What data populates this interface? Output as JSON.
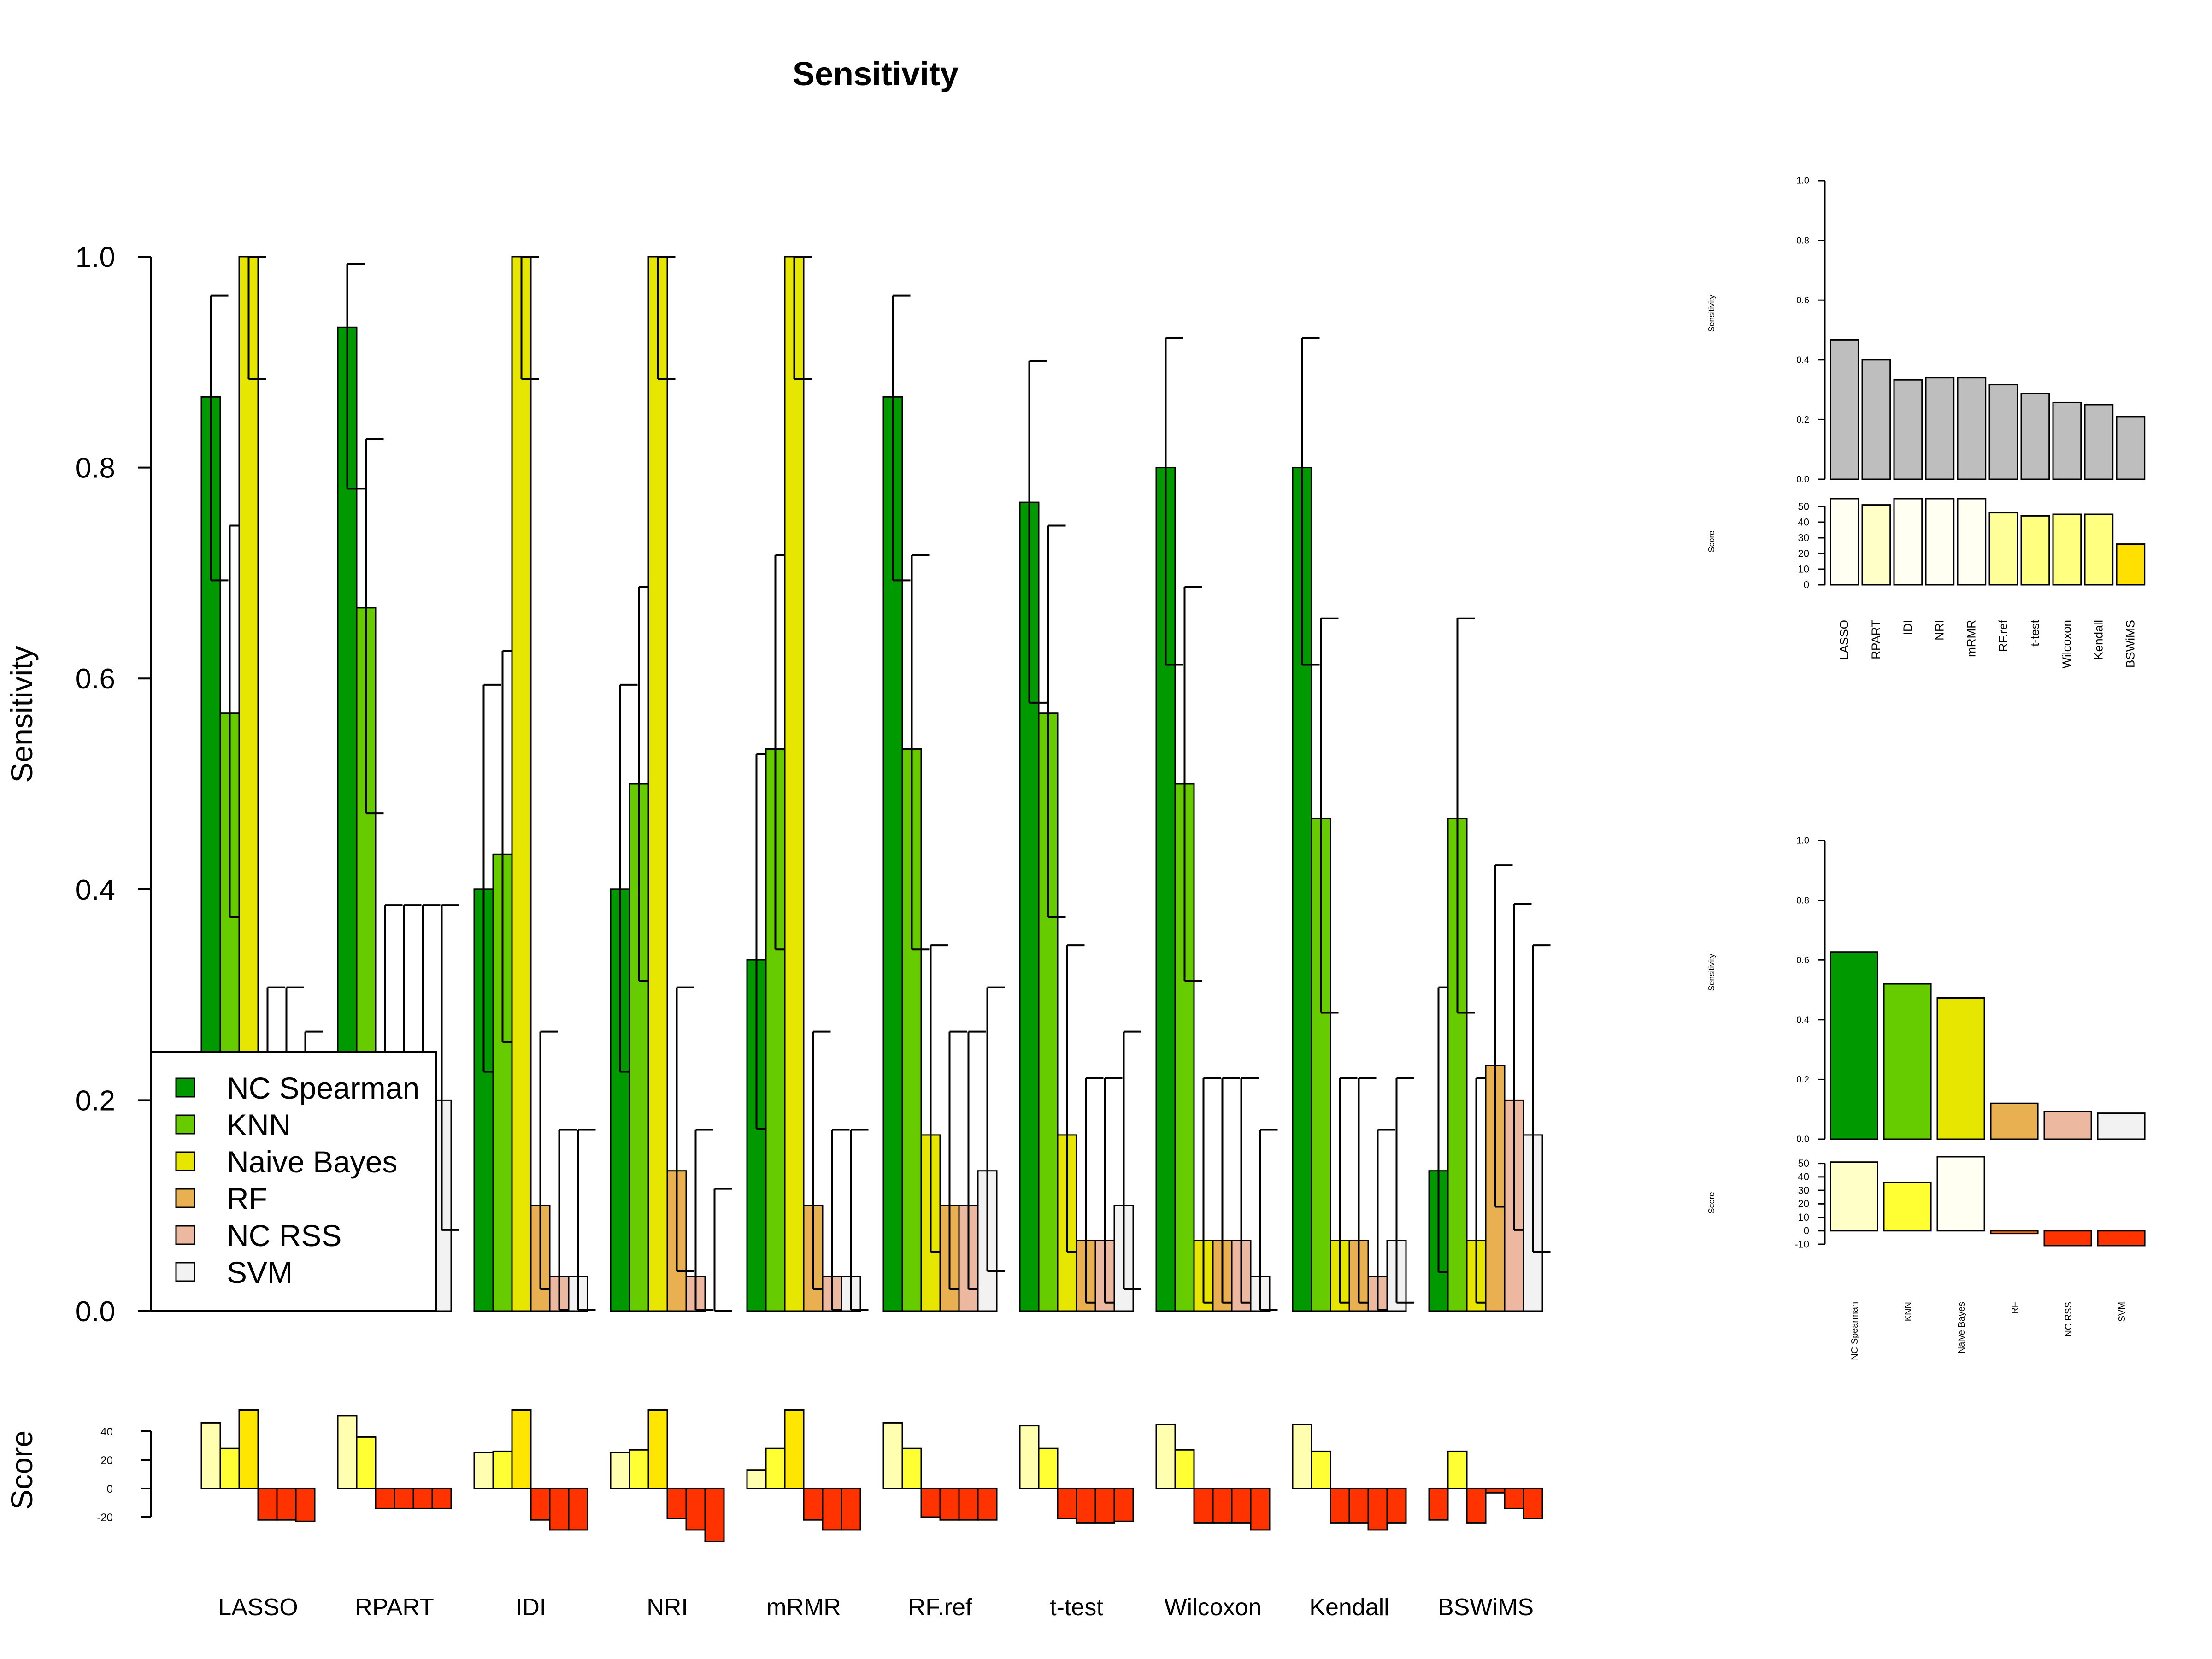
{
  "title": "Sensitivity",
  "colors": {
    "classifiers": [
      "#009900",
      "#66CC00",
      "#E6E600",
      "#E8B050",
      "#EDB8A0",
      "#F2F2F2"
    ],
    "score_pos": [
      "#FFFFAF",
      "#FFFF33",
      "#FFE600",
      "#FFD700",
      "#FFFFF0",
      "#F7F7F7"
    ],
    "score_neg": "#FF3300",
    "grey_bar": "#BEBEBE"
  },
  "chart_data": [
    {
      "type": "bar",
      "title": "Sensitivity",
      "ylabel": "Sensitivity",
      "ylim": [
        0,
        1
      ],
      "yticks": [
        "0.0",
        "0.2",
        "0.4",
        "0.6",
        "0.8",
        "1.0"
      ],
      "categories": [
        "LASSO",
        "RPART",
        "IDI",
        "NRI",
        "mRMR",
        "RF.ref",
        "t-test",
        "Wilcoxon",
        "Kendall",
        "BSWiMS"
      ],
      "legend": [
        "NC Spearman",
        "KNN",
        "Naive Bayes",
        "RF",
        "NC RSS",
        "SVM"
      ],
      "legend_position": "bottom-left",
      "series": [
        {
          "name": "NC Spearman",
          "values": [
            0.867,
            0.933,
            0.4,
            0.4,
            0.333,
            0.867,
            0.767,
            0.8,
            0.8,
            0.133
          ],
          "lower": [
            0.693,
            0.78,
            0.227,
            0.227,
            0.173,
            0.693,
            0.577,
            0.613,
            0.613,
            0.037
          ],
          "upper": [
            0.963,
            0.993,
            0.594,
            0.594,
            0.528,
            0.963,
            0.901,
            0.923,
            0.923,
            0.307
          ]
        },
        {
          "name": "KNN",
          "values": [
            0.567,
            0.667,
            0.433,
            0.5,
            0.533,
            0.533,
            0.567,
            0.5,
            0.467,
            0.467
          ],
          "lower": [
            0.374,
            0.472,
            0.255,
            0.313,
            0.343,
            0.343,
            0.374,
            0.313,
            0.283,
            0.283
          ],
          "upper": [
            0.745,
            0.827,
            0.626,
            0.687,
            0.717,
            0.717,
            0.745,
            0.687,
            0.657,
            0.657
          ]
        },
        {
          "name": "Naive Bayes",
          "values": [
            1.0,
            0.0,
            1.0,
            1.0,
            1.0,
            0.167,
            0.167,
            0.067,
            0.067,
            0.067
          ],
          "lower": [
            0.884,
            0.0,
            0.884,
            0.884,
            0.884,
            0.056,
            0.056,
            0.008,
            0.008,
            0.008
          ],
          "upper": [
            1.0,
            0.385,
            1.0,
            1.0,
            1.0,
            0.347,
            0.347,
            0.221,
            0.221,
            0.221
          ]
        },
        {
          "name": "RF",
          "values": [
            0.0,
            0.0,
            0.1,
            0.133,
            0.1,
            0.1,
            0.067,
            0.067,
            0.067,
            0.233
          ],
          "lower": [
            0.0,
            0.0,
            0.021,
            0.038,
            0.021,
            0.021,
            0.008,
            0.008,
            0.008,
            0.099
          ],
          "upper": [
            0.307,
            0.385,
            0.265,
            0.307,
            0.265,
            0.265,
            0.221,
            0.221,
            0.221,
            0.423
          ]
        },
        {
          "name": "NC RSS",
          "values": [
            0.0,
            0.0,
            0.033,
            0.033,
            0.033,
            0.1,
            0.067,
            0.067,
            0.033,
            0.2
          ],
          "lower": [
            0.0,
            0.0,
            0.001,
            0.001,
            0.001,
            0.021,
            0.008,
            0.008,
            0.001,
            0.077
          ],
          "upper": [
            0.307,
            0.385,
            0.172,
            0.172,
            0.172,
            0.265,
            0.221,
            0.221,
            0.172,
            0.386
          ]
        },
        {
          "name": "SVM",
          "values": [
            0.077,
            0.2,
            0.033,
            0.0,
            0.033,
            0.133,
            0.1,
            0.033,
            0.067,
            0.167
          ],
          "lower": [
            0.02,
            0.077,
            0.001,
            0.0,
            0.001,
            0.038,
            0.021,
            0.001,
            0.008,
            0.056
          ],
          "upper": [
            0.265,
            0.385,
            0.172,
            0.116,
            0.172,
            0.307,
            0.265,
            0.172,
            0.221,
            0.347
          ]
        }
      ]
    },
    {
      "type": "bar",
      "ylabel": "Score",
      "ylim": [
        -40,
        55
      ],
      "yticks": [
        "-20",
        "0",
        "20",
        "40"
      ],
      "categories": [
        "LASSO",
        "RPART",
        "IDI",
        "NRI",
        "mRMR",
        "RF.ref",
        "t-test",
        "Wilcoxon",
        "Kendall",
        "BSWiMS"
      ],
      "series": [
        {
          "name": "NC Spearman",
          "values": [
            46,
            51,
            25,
            25,
            13,
            46,
            44,
            45,
            45,
            -22
          ]
        },
        {
          "name": "KNN",
          "values": [
            28,
            36,
            26,
            27,
            28,
            28,
            28,
            27,
            26,
            26
          ]
        },
        {
          "name": "Naive Bayes",
          "values": [
            55,
            -14,
            55,
            55,
            55,
            -20,
            -21,
            -24,
            -24,
            -24
          ]
        },
        {
          "name": "RF",
          "values": [
            -22,
            -14,
            -22,
            -21,
            -22,
            -22,
            -24,
            -24,
            -24,
            -3
          ]
        },
        {
          "name": "NC RSS",
          "values": [
            -22,
            -14,
            -29,
            -29,
            -29,
            -22,
            -24,
            -24,
            -29,
            -14
          ]
        },
        {
          "name": "SVM",
          "values": [
            -23,
            -14,
            -29,
            -37,
            -29,
            -22,
            -23,
            -29,
            -24,
            -21
          ]
        }
      ]
    },
    {
      "type": "bar",
      "ylabel": "Sensitivity",
      "ylim": [
        0,
        1
      ],
      "yticks": [
        "0.0",
        "0.2",
        "0.4",
        "0.6",
        "0.8",
        "1.0"
      ],
      "categories": [
        "LASSO",
        "RPART",
        "IDI",
        "NRI",
        "mRMR",
        "RF.ref",
        "t-test",
        "Wilcoxon",
        "Kendall",
        "BSWiMS"
      ],
      "values": [
        0.467,
        0.4,
        0.333,
        0.34,
        0.34,
        0.317,
        0.287,
        0.257,
        0.25,
        0.21
      ]
    },
    {
      "type": "bar",
      "ylabel": "Score",
      "ylim": [
        0,
        55
      ],
      "yticks": [
        "0",
        "10",
        "20",
        "30",
        "40",
        "50"
      ],
      "categories": [
        "LASSO",
        "RPART",
        "IDI",
        "NRI",
        "mRMR",
        "RF.ref",
        "t-test",
        "Wilcoxon",
        "Kendall",
        "BSWiMS"
      ],
      "values": [
        55,
        51,
        55,
        55,
        55,
        46,
        44,
        45,
        45,
        26
      ]
    },
    {
      "type": "bar",
      "ylabel": "Sensitivity",
      "ylim": [
        0,
        1
      ],
      "yticks": [
        "0.0",
        "0.2",
        "0.4",
        "0.6",
        "0.8",
        "1.0"
      ],
      "categories": [
        "NC Spearman",
        "KNN",
        "Naive Bayes",
        "RF",
        "NC RSS",
        "SVM"
      ],
      "values": [
        0.627,
        0.52,
        0.473,
        0.12,
        0.093,
        0.087
      ]
    },
    {
      "type": "bar",
      "ylabel": "Score",
      "ylim": [
        -10,
        55
      ],
      "yticks": [
        "-10",
        "0",
        "10",
        "20",
        "30",
        "40",
        "50"
      ],
      "categories": [
        "NC Spearman",
        "KNN",
        "Naive Bayes",
        "RF",
        "NC RSS",
        "SVM"
      ],
      "values": [
        51,
        36,
        55,
        -2,
        -11,
        -11
      ]
    }
  ]
}
